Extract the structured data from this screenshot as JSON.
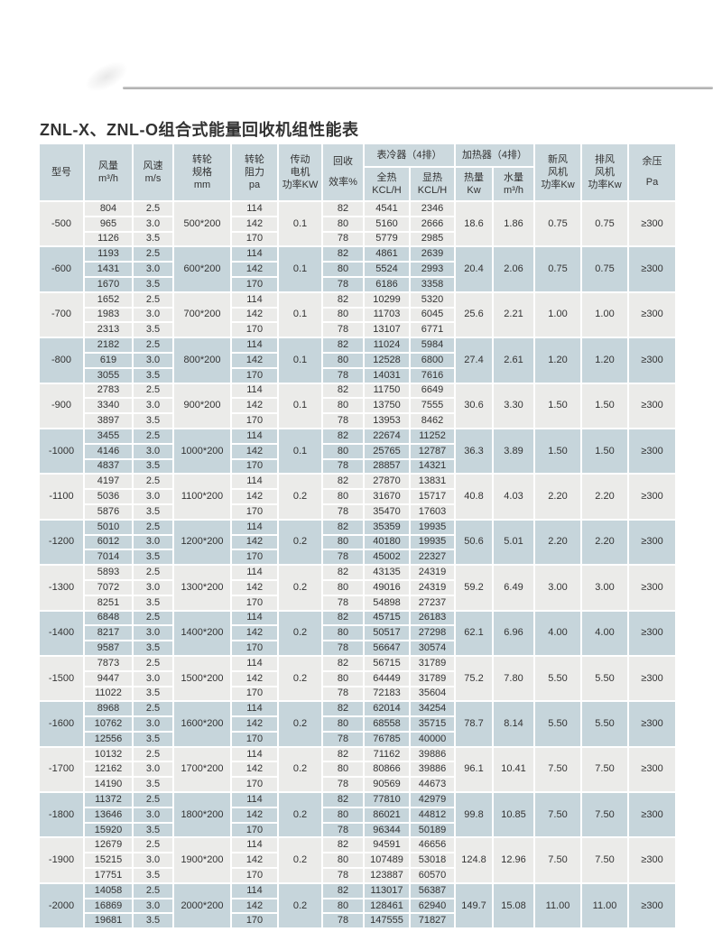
{
  "page": {
    "title": "ZNL-X、ZNL-O组合式能量回收机组性能表"
  },
  "table": {
    "headers": {
      "model": "型号",
      "airflow": "风量\nm³/h",
      "speed": "风速\nm/s",
      "wheel": "转轮\n规格\nmm",
      "resistance": "转轮\n阻力\npa",
      "motor": "传动\n电机\n功率KW",
      "efficiency": "回收\n效率%",
      "cooler_group": "表冷器（4排）",
      "heater_group": "加热器（4排）",
      "total_heat": "全热\nKCL/H",
      "sensible_heat": "显热\nKCL/H",
      "heat": "热量\nKw",
      "water": "水量\nm³/h",
      "fresh_fan": "新风\n风机\n功率Kw",
      "exhaust_fan": "排风\n风机\n功率Kw",
      "pressure": "余压\nPa"
    },
    "groups": [
      {
        "model": "-500",
        "airflow": [
          "804",
          "965",
          "1126"
        ],
        "speed": [
          "2.5",
          "3.0",
          "3.5"
        ],
        "wheel": "500*200",
        "resistance": [
          "114",
          "142",
          "170"
        ],
        "motor": "0.1",
        "efficiency": [
          "82",
          "80",
          "78"
        ],
        "total_heat": [
          "4541",
          "5160",
          "5779"
        ],
        "sensible_heat": [
          "2346",
          "2666",
          "2985"
        ],
        "heat": "18.6",
        "water": "1.86",
        "fresh_fan": "0.75",
        "exhaust_fan": "0.75",
        "pressure": "≥300"
      },
      {
        "model": "-600",
        "airflow": [
          "1193",
          "1431",
          "1670"
        ],
        "speed": [
          "2.5",
          "3.0",
          "3.5"
        ],
        "wheel": "600*200",
        "resistance": [
          "114",
          "142",
          "170"
        ],
        "motor": "0.1",
        "efficiency": [
          "82",
          "80",
          "78"
        ],
        "total_heat": [
          "4861",
          "5524",
          "6186"
        ],
        "sensible_heat": [
          "2639",
          "2993",
          "3358"
        ],
        "heat": "20.4",
        "water": "2.06",
        "fresh_fan": "0.75",
        "exhaust_fan": "0.75",
        "pressure": "≥300"
      },
      {
        "model": "-700",
        "airflow": [
          "1652",
          "1983",
          "2313"
        ],
        "speed": [
          "2.5",
          "3.0",
          "3.5"
        ],
        "wheel": "700*200",
        "resistance": [
          "114",
          "142",
          "170"
        ],
        "motor": "0.1",
        "efficiency": [
          "82",
          "80",
          "78"
        ],
        "total_heat": [
          "10299",
          "11703",
          "13107"
        ],
        "sensible_heat": [
          "5320",
          "6045",
          "6771"
        ],
        "heat": "25.6",
        "water": "2.21",
        "fresh_fan": "1.00",
        "exhaust_fan": "1.00",
        "pressure": "≥300"
      },
      {
        "model": "-800",
        "airflow": [
          "2182",
          "619",
          "3055"
        ],
        "speed": [
          "2.5",
          "3.0",
          "3.5"
        ],
        "wheel": "800*200",
        "resistance": [
          "114",
          "142",
          "170"
        ],
        "motor": "0.1",
        "efficiency": [
          "82",
          "80",
          "78"
        ],
        "total_heat": [
          "11024",
          "12528",
          "14031"
        ],
        "sensible_heat": [
          "5984",
          "6800",
          "7616"
        ],
        "heat": "27.4",
        "water": "2.61",
        "fresh_fan": "1.20",
        "exhaust_fan": "1.20",
        "pressure": "≥300"
      },
      {
        "model": "-900",
        "airflow": [
          "2783",
          "3340",
          "3897"
        ],
        "speed": [
          "2.5",
          "3.0",
          "3.5"
        ],
        "wheel": "900*200",
        "resistance": [
          "114",
          "142",
          "170"
        ],
        "motor": "0.1",
        "efficiency": [
          "82",
          "80",
          "78"
        ],
        "total_heat": [
          "11750",
          "13750",
          "13953"
        ],
        "sensible_heat": [
          "6649",
          "7555",
          "8462"
        ],
        "heat": "30.6",
        "water": "3.30",
        "fresh_fan": "1.50",
        "exhaust_fan": "1.50",
        "pressure": "≥300"
      },
      {
        "model": "-1000",
        "airflow": [
          "3455",
          "4146",
          "4837"
        ],
        "speed": [
          "2.5",
          "3.0",
          "3.5"
        ],
        "wheel": "1000*200",
        "resistance": [
          "114",
          "142",
          "170"
        ],
        "motor": "0.1",
        "efficiency": [
          "82",
          "80",
          "78"
        ],
        "total_heat": [
          "22674",
          "25765",
          "28857"
        ],
        "sensible_heat": [
          "11252",
          "12787",
          "14321"
        ],
        "heat": "36.3",
        "water": "3.89",
        "fresh_fan": "1.50",
        "exhaust_fan": "1.50",
        "pressure": "≥300"
      },
      {
        "model": "-1100",
        "airflow": [
          "4197",
          "5036",
          "5876"
        ],
        "speed": [
          "2.5",
          "3.0",
          "3.5"
        ],
        "wheel": "1100*200",
        "resistance": [
          "114",
          "142",
          "170"
        ],
        "motor": "0.2",
        "efficiency": [
          "82",
          "80",
          "78"
        ],
        "total_heat": [
          "27870",
          "31670",
          "35470"
        ],
        "sensible_heat": [
          "13831",
          "15717",
          "17603"
        ],
        "heat": "40.8",
        "water": "4.03",
        "fresh_fan": "2.20",
        "exhaust_fan": "2.20",
        "pressure": "≥300"
      },
      {
        "model": "-1200",
        "airflow": [
          "5010",
          "6012",
          "7014"
        ],
        "speed": [
          "2.5",
          "3.0",
          "3.5"
        ],
        "wheel": "1200*200",
        "resistance": [
          "114",
          "142",
          "170"
        ],
        "motor": "0.2",
        "efficiency": [
          "82",
          "80",
          "78"
        ],
        "total_heat": [
          "35359",
          "40180",
          "45002"
        ],
        "sensible_heat": [
          "19935",
          "19935",
          "22327"
        ],
        "heat": "50.6",
        "water": "5.01",
        "fresh_fan": "2.20",
        "exhaust_fan": "2.20",
        "pressure": "≥300"
      },
      {
        "model": "-1300",
        "airflow": [
          "5893",
          "7072",
          "8251"
        ],
        "speed": [
          "2.5",
          "3.0",
          "3.5"
        ],
        "wheel": "1300*200",
        "resistance": [
          "114",
          "142",
          "170"
        ],
        "motor": "0.2",
        "efficiency": [
          "82",
          "80",
          "78"
        ],
        "total_heat": [
          "43135",
          "49016",
          "54898"
        ],
        "sensible_heat": [
          "24319",
          "24319",
          "27237"
        ],
        "heat": "59.2",
        "water": "6.49",
        "fresh_fan": "3.00",
        "exhaust_fan": "3.00",
        "pressure": "≥300"
      },
      {
        "model": "-1400",
        "airflow": [
          "6848",
          "8217",
          "9587"
        ],
        "speed": [
          "2.5",
          "3.0",
          "3.5"
        ],
        "wheel": "1400*200",
        "resistance": [
          "114",
          "142",
          "170"
        ],
        "motor": "0.2",
        "efficiency": [
          "82",
          "80",
          "78"
        ],
        "total_heat": [
          "45715",
          "50517",
          "56647"
        ],
        "sensible_heat": [
          "26183",
          "27298",
          "30574"
        ],
        "heat": "62.1",
        "water": "6.96",
        "fresh_fan": "4.00",
        "exhaust_fan": "4.00",
        "pressure": "≥300"
      },
      {
        "model": "-1500",
        "airflow": [
          "7873",
          "9447",
          "11022"
        ],
        "speed": [
          "2.5",
          "3.0",
          "3.5"
        ],
        "wheel": "1500*200",
        "resistance": [
          "114",
          "142",
          "170"
        ],
        "motor": "0.2",
        "efficiency": [
          "82",
          "80",
          "78"
        ],
        "total_heat": [
          "56715",
          "64449",
          "72183"
        ],
        "sensible_heat": [
          "31789",
          "31789",
          "35604"
        ],
        "heat": "75.2",
        "water": "7.80",
        "fresh_fan": "5.50",
        "exhaust_fan": "5.50",
        "pressure": "≥300"
      },
      {
        "model": "-1600",
        "airflow": [
          "8968",
          "10762",
          "12556"
        ],
        "speed": [
          "2.5",
          "3.0",
          "3.5"
        ],
        "wheel": "1600*200",
        "resistance": [
          "114",
          "142",
          "170"
        ],
        "motor": "0.2",
        "efficiency": [
          "82",
          "80",
          "78"
        ],
        "total_heat": [
          "62014",
          "68558",
          "76785"
        ],
        "sensible_heat": [
          "34254",
          "35715",
          "40000"
        ],
        "heat": "78.7",
        "water": "8.14",
        "fresh_fan": "5.50",
        "exhaust_fan": "5.50",
        "pressure": "≥300"
      },
      {
        "model": "-1700",
        "airflow": [
          "10132",
          "12162",
          "14190"
        ],
        "speed": [
          "2.5",
          "3.0",
          "3.5"
        ],
        "wheel": "1700*200",
        "resistance": [
          "114",
          "142",
          "170"
        ],
        "motor": "0.2",
        "efficiency": [
          "82",
          "80",
          "78"
        ],
        "total_heat": [
          "71162",
          "80866",
          "90569"
        ],
        "sensible_heat": [
          "39886",
          "39886",
          "44673"
        ],
        "heat": "96.1",
        "water": "10.41",
        "fresh_fan": "7.50",
        "exhaust_fan": "7.50",
        "pressure": "≥300"
      },
      {
        "model": "-1800",
        "airflow": [
          "11372",
          "13646",
          "15920"
        ],
        "speed": [
          "2.5",
          "3.0",
          "3.5"
        ],
        "wheel": "1800*200",
        "resistance": [
          "114",
          "142",
          "170"
        ],
        "motor": "0.2",
        "efficiency": [
          "82",
          "80",
          "78"
        ],
        "total_heat": [
          "77810",
          "86021",
          "96344"
        ],
        "sensible_heat": [
          "42979",
          "44812",
          "50189"
        ],
        "heat": "99.8",
        "water": "10.85",
        "fresh_fan": "7.50",
        "exhaust_fan": "7.50",
        "pressure": "≥300"
      },
      {
        "model": "-1900",
        "airflow": [
          "12679",
          "15215",
          "17751"
        ],
        "speed": [
          "2.5",
          "3.0",
          "3.5"
        ],
        "wheel": "1900*200",
        "resistance": [
          "114",
          "142",
          "170"
        ],
        "motor": "0.2",
        "efficiency": [
          "82",
          "80",
          "78"
        ],
        "total_heat": [
          "94591",
          "107489",
          "123887"
        ],
        "sensible_heat": [
          "46656",
          "53018",
          "60570"
        ],
        "heat": "124.8",
        "water": "12.96",
        "fresh_fan": "7.50",
        "exhaust_fan": "7.50",
        "pressure": "≥300"
      },
      {
        "model": "-2000",
        "airflow": [
          "14058",
          "16869",
          "19681"
        ],
        "speed": [
          "2.5",
          "3.0",
          "3.5"
        ],
        "wheel": "2000*200",
        "resistance": [
          "114",
          "142",
          "170"
        ],
        "motor": "0.2",
        "efficiency": [
          "82",
          "80",
          "78"
        ],
        "total_heat": [
          "113017",
          "128461",
          "147555"
        ],
        "sensible_heat": [
          "56387",
          "62940",
          "71827"
        ],
        "heat": "149.7",
        "water": "15.08",
        "fresh_fan": "11.00",
        "exhaust_fan": "11.00",
        "pressure": "≥300"
      }
    ]
  },
  "colors": {
    "header_bg": "#ccd9de",
    "row_blue": "#c6d5db",
    "row_light": "#ebebe9",
    "text": "#333333",
    "divider_line": "#a8a8a8"
  }
}
